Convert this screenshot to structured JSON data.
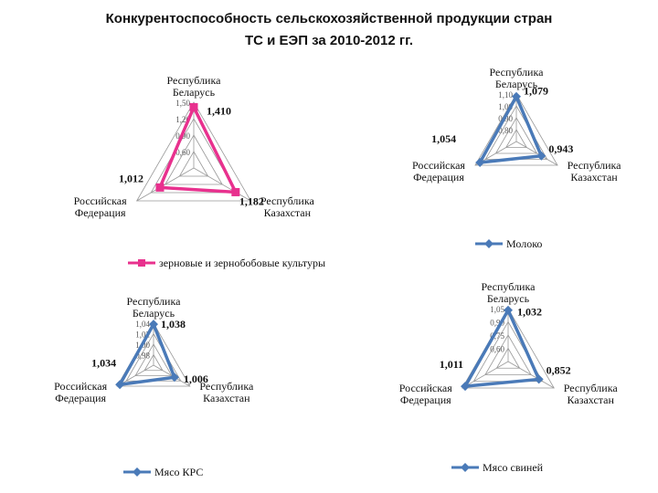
{
  "page": {
    "title_line1": "Конкурентоспособность сельскохозяйственной продукции стран",
    "title_line2": "ТС и ЕЭП за 2010-2012 гг."
  },
  "colors": {
    "pink": "#e8318e",
    "blue": "#4a7ab8",
    "grid": "#999999",
    "text": "#111111"
  },
  "chart_data": [
    {
      "type": "radar",
      "axes": [
        [
          "Республика",
          "Беларусь"
        ],
        [
          "Республика",
          "Казахстан"
        ],
        [
          "Российская",
          "Федерация"
        ]
      ],
      "ticks": [
        "0,60",
        "0,90",
        "1,20",
        "1,50"
      ],
      "tick_values": [
        0.6,
        0.9,
        1.2,
        1.5
      ],
      "range": [
        0.3,
        1.5
      ],
      "series": [
        {
          "name": "зерновые и зернобобовые культуры",
          "values": [
            1.41,
            1.182,
            1.012
          ],
          "labels": [
            "1,410",
            "1,182",
            "1,012"
          ],
          "color": "#e8318e",
          "marker": "square"
        }
      ]
    },
    {
      "type": "radar",
      "axes": [
        [
          "Республика",
          "Беларусь"
        ],
        [
          "Республика",
          "Казахстан"
        ],
        [
          "Российская",
          "Федерация"
        ]
      ],
      "ticks": [
        "0,80",
        "0,90",
        "1,00",
        "1,10"
      ],
      "tick_values": [
        0.8,
        0.9,
        1.0,
        1.1
      ],
      "range": [
        0.7,
        1.1
      ],
      "series": [
        {
          "name": "Молоко",
          "values": [
            1.079,
            0.943,
            1.054
          ],
          "labels": [
            "1,079",
            "0,943",
            "1,054"
          ],
          "color": "#4a7ab8",
          "marker": "diamond"
        }
      ]
    },
    {
      "type": "radar",
      "axes": [
        [
          "Республика",
          "Беларусь"
        ],
        [
          "Республика",
          "Казахстан"
        ],
        [
          "Российская",
          "Федерация"
        ]
      ],
      "ticks": [
        "0,98",
        "1,00",
        "1,02",
        "1,04"
      ],
      "tick_values": [
        0.98,
        1.0,
        1.02,
        1.04
      ],
      "range": [
        0.96,
        1.04
      ],
      "series": [
        {
          "name": "Мясо КРС",
          "values": [
            1.038,
            1.006,
            1.034
          ],
          "labels": [
            "1,038",
            "1,006",
            "1,034"
          ],
          "color": "#4a7ab8",
          "marker": "diamond"
        }
      ]
    },
    {
      "type": "radar",
      "axes": [
        [
          "Республика",
          "Беларусь"
        ],
        [
          "Республика",
          "Казахстан"
        ],
        [
          "Российская",
          "Федерация"
        ]
      ],
      "ticks": [
        "0,60",
        "0,75",
        "0,90",
        "1,05"
      ],
      "tick_values": [
        0.6,
        0.75,
        0.9,
        1.05
      ],
      "range": [
        0.45,
        1.05
      ],
      "series": [
        {
          "name": "Мясо свиней",
          "values": [
            1.032,
            0.852,
            1.011
          ],
          "labels": [
            "1,032",
            "0,852",
            "1,011"
          ],
          "color": "#4a7ab8",
          "marker": "diamond"
        }
      ]
    }
  ]
}
